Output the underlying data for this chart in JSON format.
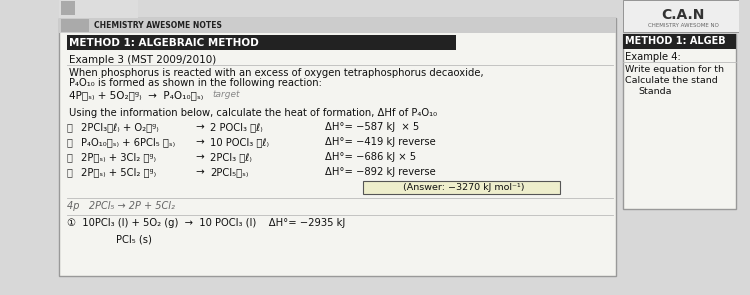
{
  "bg_color": "#d8d8d8",
  "paper_color": "#f4f4f0",
  "header_text": "CHEMISTRY AWESOME NOTES",
  "method_title": "METHOD 1: ALGEBRAIC METHOD",
  "example_title": "Example 3 (MST 2009/2010)",
  "problem_line1": "When phosphorus is reacted with an excess of oxygen tetraphosphorus decaoxide,",
  "problem_line2": "P₄O₁₀ is formed as shown in the following reaction:",
  "reaction_main": "4P₏ₛ₎ + 5O₂₏ᵍ₎  →  P₄O₁₀₏ₛ₎",
  "reaction_note": "target",
  "question_text": "Using the information below, calculate the heat of formation, ΔHf of P₄O₁₀",
  "reactions": [
    {
      "label": "a",
      "lhs": "2PCl₃₏ℓ₎ + O₂₏ᵍ₎",
      "rhs": "2 POCl₃ ₏ℓ₎",
      "dH": "ΔH°= −587 kJ  × 5"
    },
    {
      "label": "b",
      "lhs": "P₄O₁₀₏ₛ₎ + 6PCl₅ ₏ₛ₎",
      "rhs": "10 POCl₃ ₏ℓ₎",
      "dH": "ΔH°= −419 kJ reverse"
    },
    {
      "label": "c",
      "lhs": "2P₏ₛ₎ + 3Cl₂ ₏ᵍ₎",
      "rhs": "2PCl₃ ₏ℓ₎",
      "dH": "ΔH°= −686 kJ × 5"
    },
    {
      "label": "d",
      "lhs": "2P₏ₛ₎ + 5Cl₂ ₏ᵍ₎",
      "rhs": "2PCl₅₏ₛ₎",
      "dH": "ΔH°= −892 kJ reverse"
    }
  ],
  "answer_text": "(Answer: −3270 kJ mol⁻¹)",
  "hw_line": "4p   2PCl₅ → 2P + 5Cl₂",
  "bottom_line1": "①  10PCl₃ (l) + 5O₂ (g)  →  10 POCl₃ (l)    ΔH°= −2935 kJ",
  "bottom_line2": "PCl₅ (s)",
  "right_method": "METHOD 1: ALGEB",
  "right_example": "Example 4:",
  "right_line1": "Write equation for th",
  "right_line2": "Calculate the stand",
  "right_line3": "Standa",
  "logo_text": "C.A.N",
  "logo_sub": "CHEMISTRY AWESOME NO"
}
